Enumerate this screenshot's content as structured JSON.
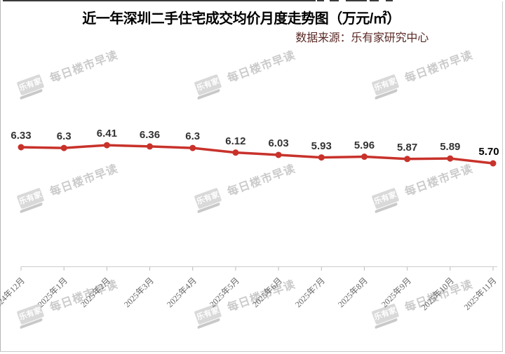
{
  "title": "近一年深圳二手住宅成交均价月度走势图（万元/㎡）",
  "source_note": "数据来源：乐有家研究中心",
  "watermark": {
    "logo_text": "乐有家",
    "text": "每日楼市早读"
  },
  "colors": {
    "line": "#c8322b",
    "subtitle": "#5a2a26",
    "title_black": "#000000"
  },
  "chart_data": {
    "type": "line",
    "title": "近一年深圳二手住宅成交均价月度走势图（万元/㎡）",
    "source": "数据来源：乐有家研究中心",
    "categories": [
      "2024年12月",
      "2025年1月",
      "2025年2月",
      "2025年3月",
      "2025年4月",
      "2025年5月",
      "2025年6月",
      "2025年7月",
      "2025年8月",
      "2025年9月",
      "2025年10月",
      "2025年11月"
    ],
    "values": [
      6.33,
      6.3,
      6.41,
      6.36,
      6.3,
      6.12,
      6.03,
      5.93,
      5.96,
      5.87,
      5.89,
      5.7
    ],
    "point_labels": [
      "6.33",
      "6.3",
      "6.41",
      "6.36",
      "6.3",
      "6.12",
      "6.03",
      "5.93",
      "5.96",
      "5.87",
      "5.89",
      "5.70"
    ],
    "ylabel": "万元/㎡",
    "grid": false,
    "legend": false,
    "line_color": "#c8322b"
  }
}
